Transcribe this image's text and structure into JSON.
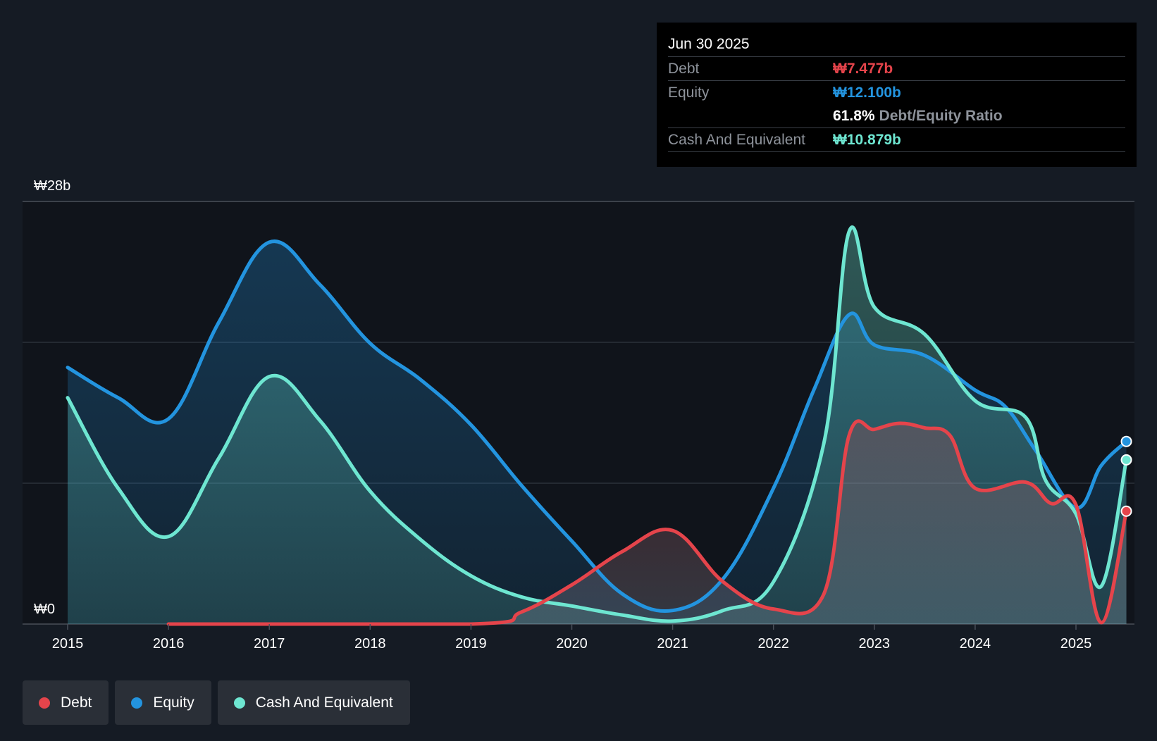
{
  "chart_data": {
    "type": "area",
    "y_axis": {
      "max_label": "₩28b",
      "min_label": "₩0",
      "ylim": [
        0,
        28
      ]
    },
    "x_axis": {
      "ticks": [
        "2015",
        "2016",
        "2017",
        "2018",
        "2019",
        "2020",
        "2021",
        "2022",
        "2023",
        "2024",
        "2025"
      ],
      "xlim": [
        2015,
        2025.5
      ]
    },
    "series": [
      {
        "name": "Equity",
        "color": "#2394df",
        "points": [
          [
            2015,
            17.0
          ],
          [
            2015.5,
            15.0
          ],
          [
            2016,
            13.6
          ],
          [
            2016.5,
            20.0
          ],
          [
            2017,
            25.3
          ],
          [
            2017.5,
            22.5
          ],
          [
            2018,
            18.6
          ],
          [
            2018.5,
            16.2
          ],
          [
            2019,
            13.2
          ],
          [
            2019.5,
            9.2
          ],
          [
            2020,
            5.5
          ],
          [
            2020.5,
            2.0
          ],
          [
            2021,
            0.9
          ],
          [
            2021.5,
            3.0
          ],
          [
            2022,
            9.0
          ],
          [
            2022.4,
            15.5
          ],
          [
            2022.75,
            20.5
          ],
          [
            2023,
            18.5
          ],
          [
            2023.5,
            17.8
          ],
          [
            2024,
            15.5
          ],
          [
            2024.3,
            14.4
          ],
          [
            2024.6,
            11.5
          ],
          [
            2025,
            7.7
          ],
          [
            2025.25,
            10.5
          ],
          [
            2025.5,
            12.1
          ]
        ]
      },
      {
        "name": "Cash And Equivalent",
        "color": "#6ee6d1",
        "points": [
          [
            2015,
            15.0
          ],
          [
            2015.5,
            9.0
          ],
          [
            2016,
            5.8
          ],
          [
            2016.5,
            11.0
          ],
          [
            2017,
            16.4
          ],
          [
            2017.5,
            13.5
          ],
          [
            2018,
            8.8
          ],
          [
            2018.5,
            5.6
          ],
          [
            2019,
            3.2
          ],
          [
            2019.5,
            1.8
          ],
          [
            2020,
            1.2
          ],
          [
            2020.5,
            0.6
          ],
          [
            2021,
            0.2
          ],
          [
            2021.5,
            0.9
          ],
          [
            2022,
            2.8
          ],
          [
            2022.5,
            12.0
          ],
          [
            2022.75,
            26.0
          ],
          [
            2023,
            21.0
          ],
          [
            2023.5,
            19.2
          ],
          [
            2024,
            14.8
          ],
          [
            2024.5,
            13.7
          ],
          [
            2024.7,
            9.5
          ],
          [
            2025,
            7.3
          ],
          [
            2025.25,
            2.5
          ],
          [
            2025.5,
            10.879
          ]
        ]
      },
      {
        "name": "Debt",
        "color": "#e5444b",
        "points": [
          [
            2016,
            0
          ],
          [
            2019,
            0
          ],
          [
            2019.5,
            0.8
          ],
          [
            2020,
            2.6
          ],
          [
            2020.5,
            4.8
          ],
          [
            2021,
            6.2
          ],
          [
            2021.5,
            2.8
          ],
          [
            2022,
            1.0
          ],
          [
            2022.5,
            2.0
          ],
          [
            2022.75,
            12.5
          ],
          [
            2023,
            12.9
          ],
          [
            2023.25,
            13.3
          ],
          [
            2023.5,
            13.0
          ],
          [
            2023.75,
            12.5
          ],
          [
            2024,
            9.0
          ],
          [
            2024.5,
            9.4
          ],
          [
            2024.75,
            8.0
          ],
          [
            2025,
            7.9
          ],
          [
            2025.25,
            0.1
          ],
          [
            2025.5,
            7.477
          ]
        ]
      }
    ]
  },
  "tooltip": {
    "date": "Jun 30 2025",
    "debt_label": "Debt",
    "debt_value": "₩7.477b",
    "equity_label": "Equity",
    "equity_value": "₩12.100b",
    "ratio_value": "61.8%",
    "ratio_label": "Debt/Equity Ratio",
    "cash_label": "Cash And Equivalent",
    "cash_value": "₩10.879b"
  },
  "legend": [
    {
      "label": "Debt",
      "color": "#e5444b"
    },
    {
      "label": "Equity",
      "color": "#2394df"
    },
    {
      "label": "Cash And Equivalent",
      "color": "#6ee6d1"
    }
  ],
  "colors": {
    "background": "#151b24",
    "plot_background": "#10141b",
    "debt": "#e5444b",
    "equity": "#2394df",
    "cash": "#6ee6d1"
  }
}
